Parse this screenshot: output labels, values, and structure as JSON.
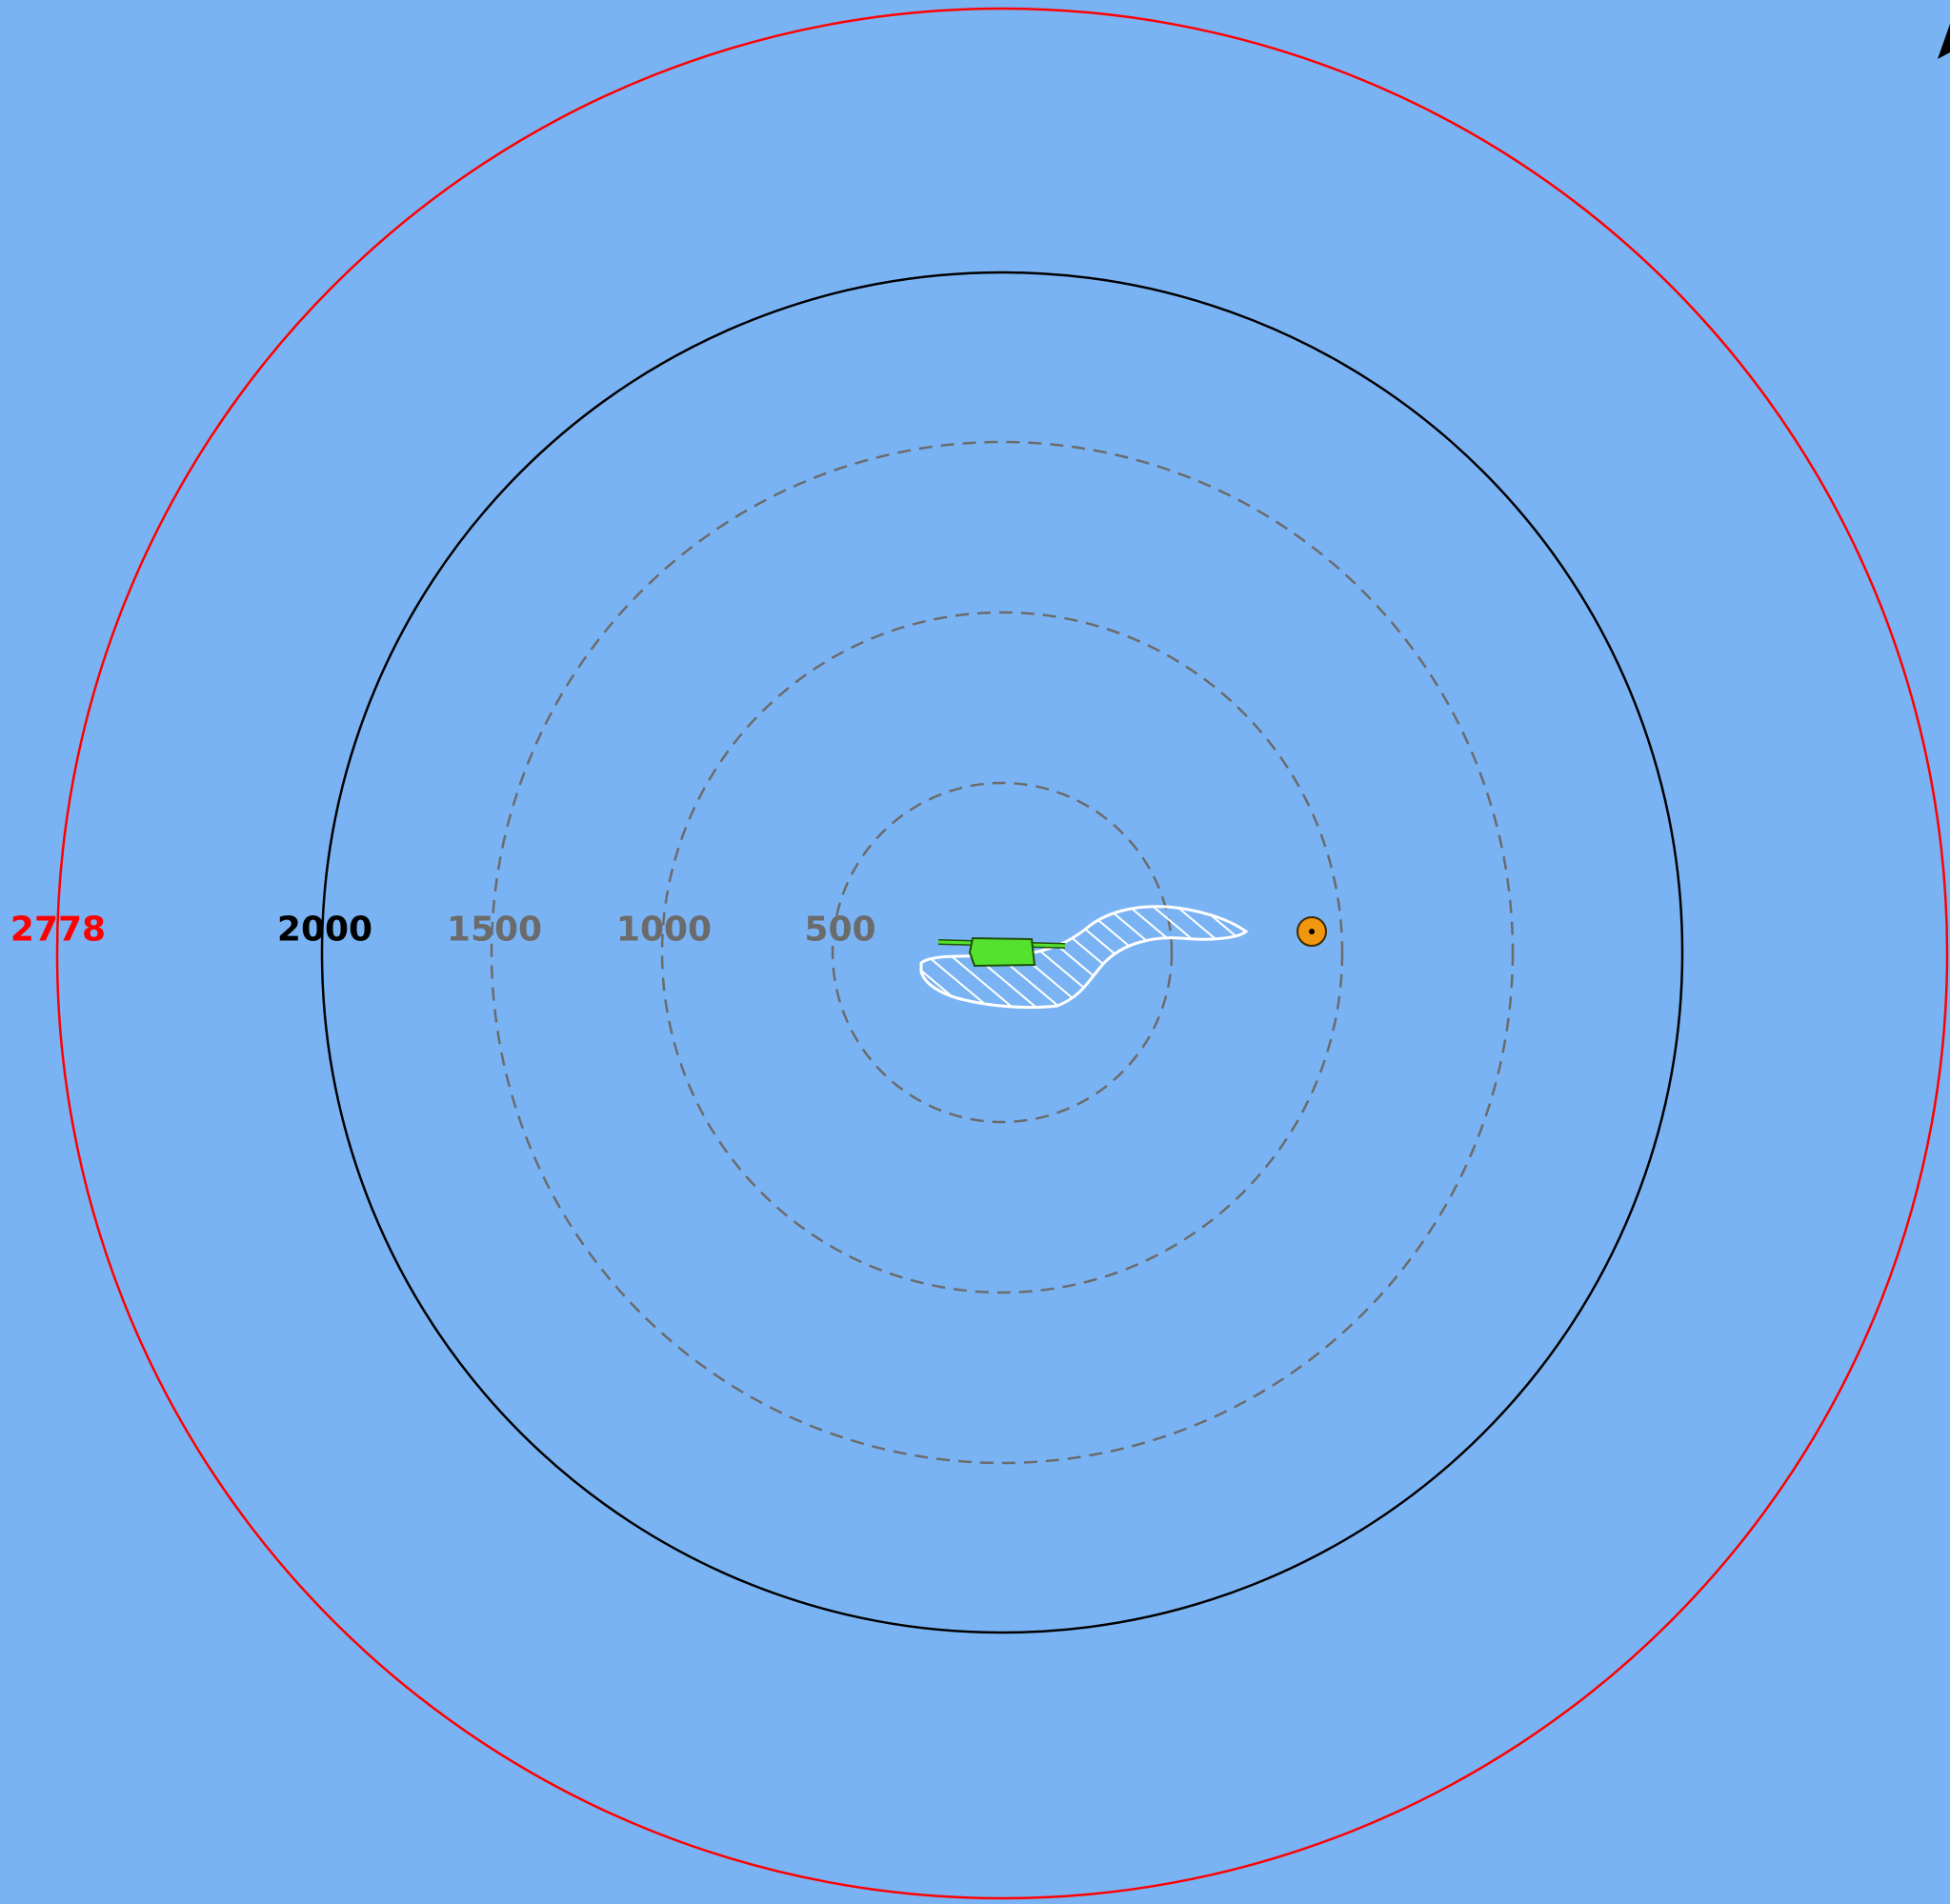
{
  "map": {
    "background_color": "#7ab3f4",
    "range_rings": [
      {
        "label": "500",
        "style": "dashed",
        "color": "#6b6b6b"
      },
      {
        "label": "1000",
        "style": "dashed",
        "color": "#6b6b6b"
      },
      {
        "label": "1500",
        "style": "dashed",
        "color": "#6b6b6b"
      },
      {
        "label": "2000",
        "style": "solid",
        "color": "#000000"
      },
      {
        "label": "2778",
        "style": "solid",
        "color": "#ff0000"
      }
    ],
    "vessel": {
      "icon": "green-vessel-icon",
      "color": "#55e22e"
    },
    "hatched_area": {
      "icon": "hatched-zone-icon",
      "color": "#ffffff"
    },
    "target_marker": {
      "icon": "orange-target-icon",
      "color": "#f0960f"
    },
    "north_arrow": {
      "icon": "north-arrow-icon",
      "color": "#000000"
    }
  }
}
